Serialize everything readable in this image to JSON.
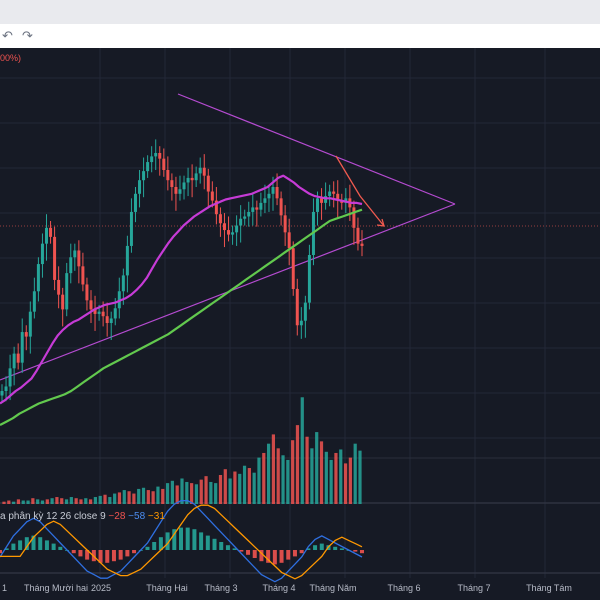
{
  "toolbar": {
    "undo_icon": "undo-icon",
    "redo_icon": "redo-icon"
  },
  "chart_data": {
    "type": "candlestick",
    "corner_label": "00%)",
    "x_ticks": [
      "1",
      "Tháng Mười hai",
      "2025",
      "Tháng Hai",
      "Tháng 3",
      "Tháng 4",
      "Tháng Năm",
      "Tháng 6",
      "Tháng 7",
      "Tháng Tám"
    ],
    "macd_label": {
      "text": "a phân kỳ 12 26 close 9",
      "macd": "−28",
      "signal": "−58",
      "hist": "−31"
    },
    "colors": {
      "up": "#26a69a",
      "down": "#ef5350",
      "ma_fast": "#c63bd6",
      "ma_slow": "#62c94e",
      "trendline": "#b54bd1",
      "arrow": "#f05a4f",
      "macd_line": "#2f6fe0",
      "signal_line": "#ff9800",
      "background": "#161a25"
    },
    "price_series": [
      300,
      304,
      320,
      333,
      325,
      352,
      348,
      370,
      388,
      412,
      430,
      444,
      436,
      398,
      385,
      372,
      404,
      418,
      424,
      410,
      394,
      380,
      372,
      368,
      370,
      366,
      360,
      364,
      373,
      388,
      402,
      428,
      458,
      474,
      486,
      494,
      502,
      507,
      510,
      505,
      495,
      486,
      480,
      474,
      478,
      484,
      488,
      486,
      492,
      497,
      490,
      476,
      468,
      456,
      448,
      442,
      438,
      440,
      446,
      452,
      454,
      458,
      462,
      460,
      466,
      470,
      474,
      480,
      470,
      455,
      440,
      426,
      390,
      358,
      362,
      378,
      420,
      458,
      470,
      466,
      472,
      476,
      474,
      468,
      466,
      470,
      462,
      444,
      430,
      428
    ],
    "ma_fast_series": [
      289,
      292,
      296,
      300,
      303,
      307,
      311,
      318,
      326,
      334,
      342,
      349,
      354,
      358,
      361,
      363,
      366,
      369,
      372,
      374,
      376,
      377,
      378,
      380,
      382,
      385,
      389,
      394,
      400,
      408,
      416,
      423,
      430,
      436,
      441,
      446,
      450,
      454,
      457,
      460,
      463,
      465,
      467,
      469,
      470,
      471,
      472,
      473,
      474,
      476,
      478,
      480,
      484,
      488,
      490,
      487,
      484,
      480,
      477,
      474,
      472,
      471,
      470,
      470,
      469,
      468,
      467,
      466,
      466,
      465
    ],
    "ma_slow_series": [
      270,
      273,
      276,
      280,
      283,
      286,
      289,
      291,
      293,
      295,
      297,
      300,
      304,
      308,
      312,
      316,
      320,
      323,
      326,
      329,
      332,
      335,
      338,
      341,
      344,
      347,
      350,
      354,
      358,
      362,
      366,
      370,
      374,
      378,
      382,
      386,
      390,
      394,
      398,
      402,
      406,
      410,
      414,
      418,
      422,
      426,
      430,
      434,
      438,
      442,
      446,
      450,
      452,
      454,
      456,
      458,
      460
    ],
    "volume_series": [
      2,
      3,
      2,
      4,
      3,
      3,
      5,
      4,
      3,
      4,
      5,
      6,
      5,
      4,
      6,
      5,
      4,
      5,
      4,
      6,
      7,
      8,
      6,
      9,
      10,
      12,
      11,
      9,
      13,
      14,
      12,
      11,
      15,
      13,
      18,
      20,
      16,
      22,
      19,
      18,
      17,
      21,
      24,
      19,
      18,
      25,
      30,
      22,
      28,
      26,
      33,
      31,
      27,
      40,
      44,
      52,
      60,
      48,
      42,
      38,
      55,
      68,
      92,
      58,
      48,
      62,
      54,
      45,
      38,
      44,
      47,
      35,
      40,
      52,
      46
    ],
    "macd_series": [
      -2,
      1,
      4,
      6,
      8,
      9,
      8,
      6,
      4,
      2,
      0,
      -2,
      -4,
      -6,
      -7,
      -8,
      -8,
      -7,
      -6,
      -4,
      -2,
      0,
      2,
      5,
      8,
      11,
      13,
      14,
      14,
      13,
      11,
      9,
      7,
      5,
      3,
      1,
      -1,
      -3,
      -5,
      -7,
      -8,
      -9,
      -8,
      -6,
      -4,
      -2,
      1,
      3,
      4,
      3,
      2,
      1,
      0,
      -1,
      -2
    ]
  }
}
